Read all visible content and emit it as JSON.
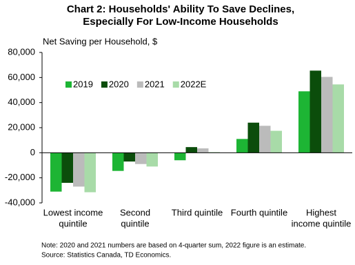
{
  "chart_data": {
    "type": "bar",
    "title": [
      "Chart 2: Households' Ability To Save Declines,",
      "Especially For Low-Income Households"
    ],
    "y_label": "Net Saving per Household, $",
    "categories": [
      [
        "Lowest income",
        "quintile"
      ],
      [
        "Second",
        "quintile"
      ],
      [
        "Third quintile"
      ],
      [
        "Fourth quintile"
      ],
      [
        "Highest",
        "income quintile"
      ]
    ],
    "series": [
      {
        "name": "2019",
        "color": "#1db534",
        "values": [
          -31000,
          -14500,
          -6000,
          11000,
          49000
        ]
      },
      {
        "name": "2020",
        "color": "#0b4d0b",
        "values": [
          -24000,
          -7000,
          4500,
          24000,
          65500
        ]
      },
      {
        "name": "2021",
        "color": "#bbbbbb",
        "values": [
          -27000,
          -9000,
          3500,
          21500,
          60500
        ]
      },
      {
        "name": "2022E",
        "color": "#a8dba8",
        "values": [
          -31500,
          -11000,
          500,
          17500,
          54500
        ]
      }
    ],
    "ylim": [
      -40000,
      80000
    ],
    "yticks": [
      {
        "value": -40000,
        "label": "-40,000"
      },
      {
        "value": -20000,
        "label": "-20,000"
      },
      0,
      {
        "value": 20000,
        "label": "20,000"
      },
      {
        "value": 40000,
        "label": "40,000"
      },
      {
        "value": 60000,
        "label": "60,000"
      },
      {
        "value": 80000,
        "label": "80,000"
      }
    ],
    "grid": false,
    "legend": "upper-left",
    "note": [
      "Note: 2020 and 2021 numbers are based on 4-quarter sum, 2022 figure is an estimate.",
      "Source: Statistics Canada, TD Economics."
    ]
  }
}
